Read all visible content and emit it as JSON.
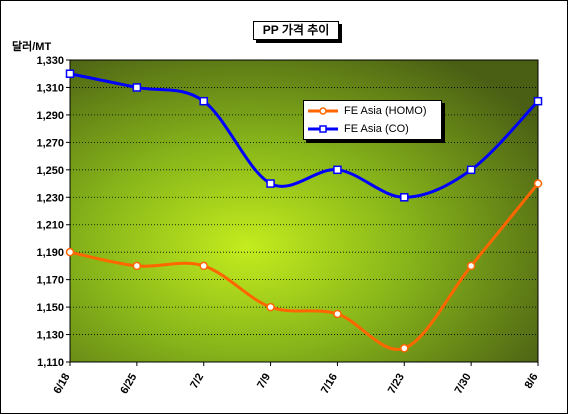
{
  "chart_data": {
    "type": "line",
    "title": "PP 가격 추이",
    "ylabel": "달러/MT",
    "xlabel": "",
    "categories": [
      "6/18",
      "6/25",
      "7/2",
      "7/9",
      "7/16",
      "7/23",
      "7/30",
      "8/6"
    ],
    "yticks": [
      "1,110",
      "1,130",
      "1,150",
      "1,170",
      "1,190",
      "1,210",
      "1,230",
      "1,250",
      "1,270",
      "1,290",
      "1,310",
      "1,330"
    ],
    "ylim": [
      1110,
      1330
    ],
    "grid": "horizontal",
    "legend_position": "top-right",
    "series": [
      {
        "name": "FE Asia (HOMO)",
        "color": "#ff6600",
        "marker": "circle",
        "values": [
          1190,
          1180,
          1180,
          1150,
          1145,
          1120,
          1180,
          1240
        ]
      },
      {
        "name": "FE Asia (CO)",
        "color": "#0000ff",
        "marker": "square",
        "values": [
          1320,
          1310,
          1300,
          1240,
          1250,
          1230,
          1250,
          1300
        ]
      }
    ],
    "plot_background": "#99cc00"
  }
}
